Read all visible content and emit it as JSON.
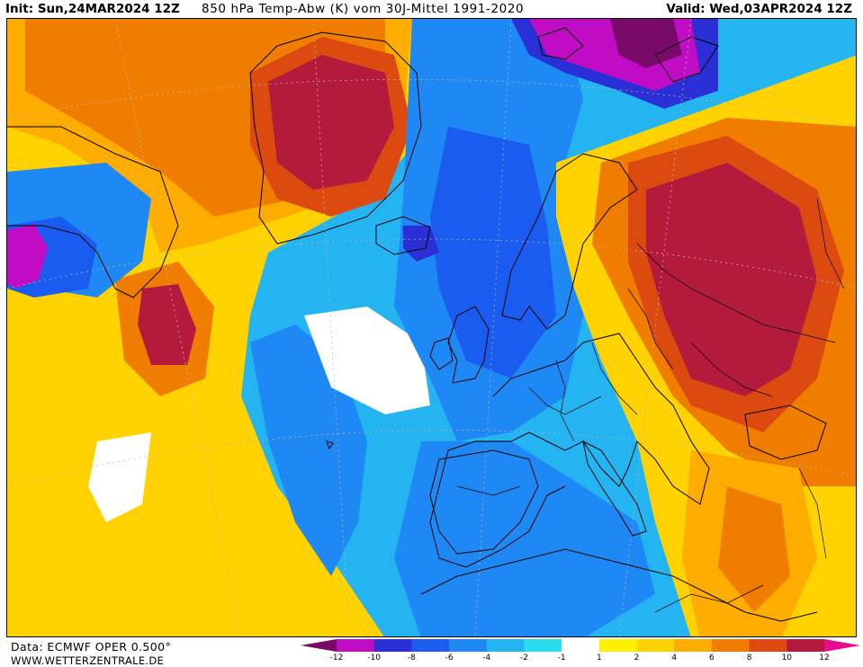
{
  "header": {
    "init": "Init: Sun,24MAR2024 12Z",
    "title": "850 hPa Temp-Abw (K) vom 30J-Mittel 1991-2020",
    "valid": "Valid: Wed,03APR2024 12Z"
  },
  "footer": {
    "source": "Data: ECMWF OPER 0.500°",
    "website": "WWW.WETTERZENTRALE.DE"
  },
  "legend": {
    "tick_labels": [
      "-12",
      "-10",
      "-8",
      "-6",
      "-4",
      "-2",
      "-1",
      "1",
      "2",
      "4",
      "6",
      "8",
      "10",
      "12"
    ],
    "bin_colors": [
      "#c00cc4",
      "#2a2fd6",
      "#1a5cf0",
      "#1e88f4",
      "#24b4f2",
      "#28dcf0",
      "#ffffff",
      "#fff200",
      "#ffd200",
      "#ffac00",
      "#f07c00",
      "#dc4a10",
      "#b41a3c"
    ],
    "low_end_color": "#7a0a6a",
    "high_end_color": "#e80a8c"
  },
  "colors": {
    "coastline": "#000000",
    "border": "#000000",
    "graticule": "#b8b8b8"
  }
}
